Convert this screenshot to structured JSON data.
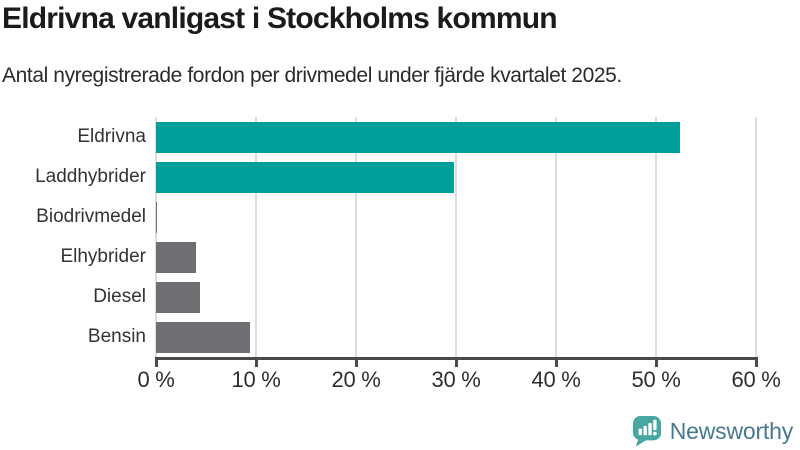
{
  "chart_data": {
    "type": "bar",
    "orientation": "horizontal",
    "title": "Eldrivna vanligast i Stockholms kommun",
    "subtitle": "Antal nyregistrerade fordon per drivmedel under fjärde kvartalet 2025.",
    "categories": [
      "Eldrivna",
      "Laddhybrider",
      "Biodrivmedel",
      "Elhybrider",
      "Diesel",
      "Bensin"
    ],
    "values": [
      52.4,
      29.8,
      0.1,
      4.0,
      4.4,
      9.4
    ],
    "value_unit": "%",
    "xlabel": "",
    "ylabel": "",
    "xlim": [
      0,
      60
    ],
    "xticks": [
      0,
      10,
      20,
      30,
      40,
      50,
      60
    ],
    "xtick_labels": [
      "0 %",
      "10 %",
      "20 %",
      "30 %",
      "40 %",
      "50 %",
      "60 %"
    ],
    "grid": true,
    "legend": false,
    "bar_colors": [
      "#009f9a",
      "#009f9a",
      "#6e6e73",
      "#6e6e73",
      "#6e6e73",
      "#6e6e73"
    ]
  },
  "branding": {
    "label": "Newsworthy",
    "icon": "newsworthy-speech-bubble-chart-icon",
    "icon_color": "#49a7a2",
    "text_color": "#47798c"
  },
  "style": {
    "highlight_color": "#009f9a",
    "muted_color": "#6e6e73",
    "axis_color": "#4a4a4a",
    "grid_color": "#dddddd",
    "background": "#ffffff"
  }
}
